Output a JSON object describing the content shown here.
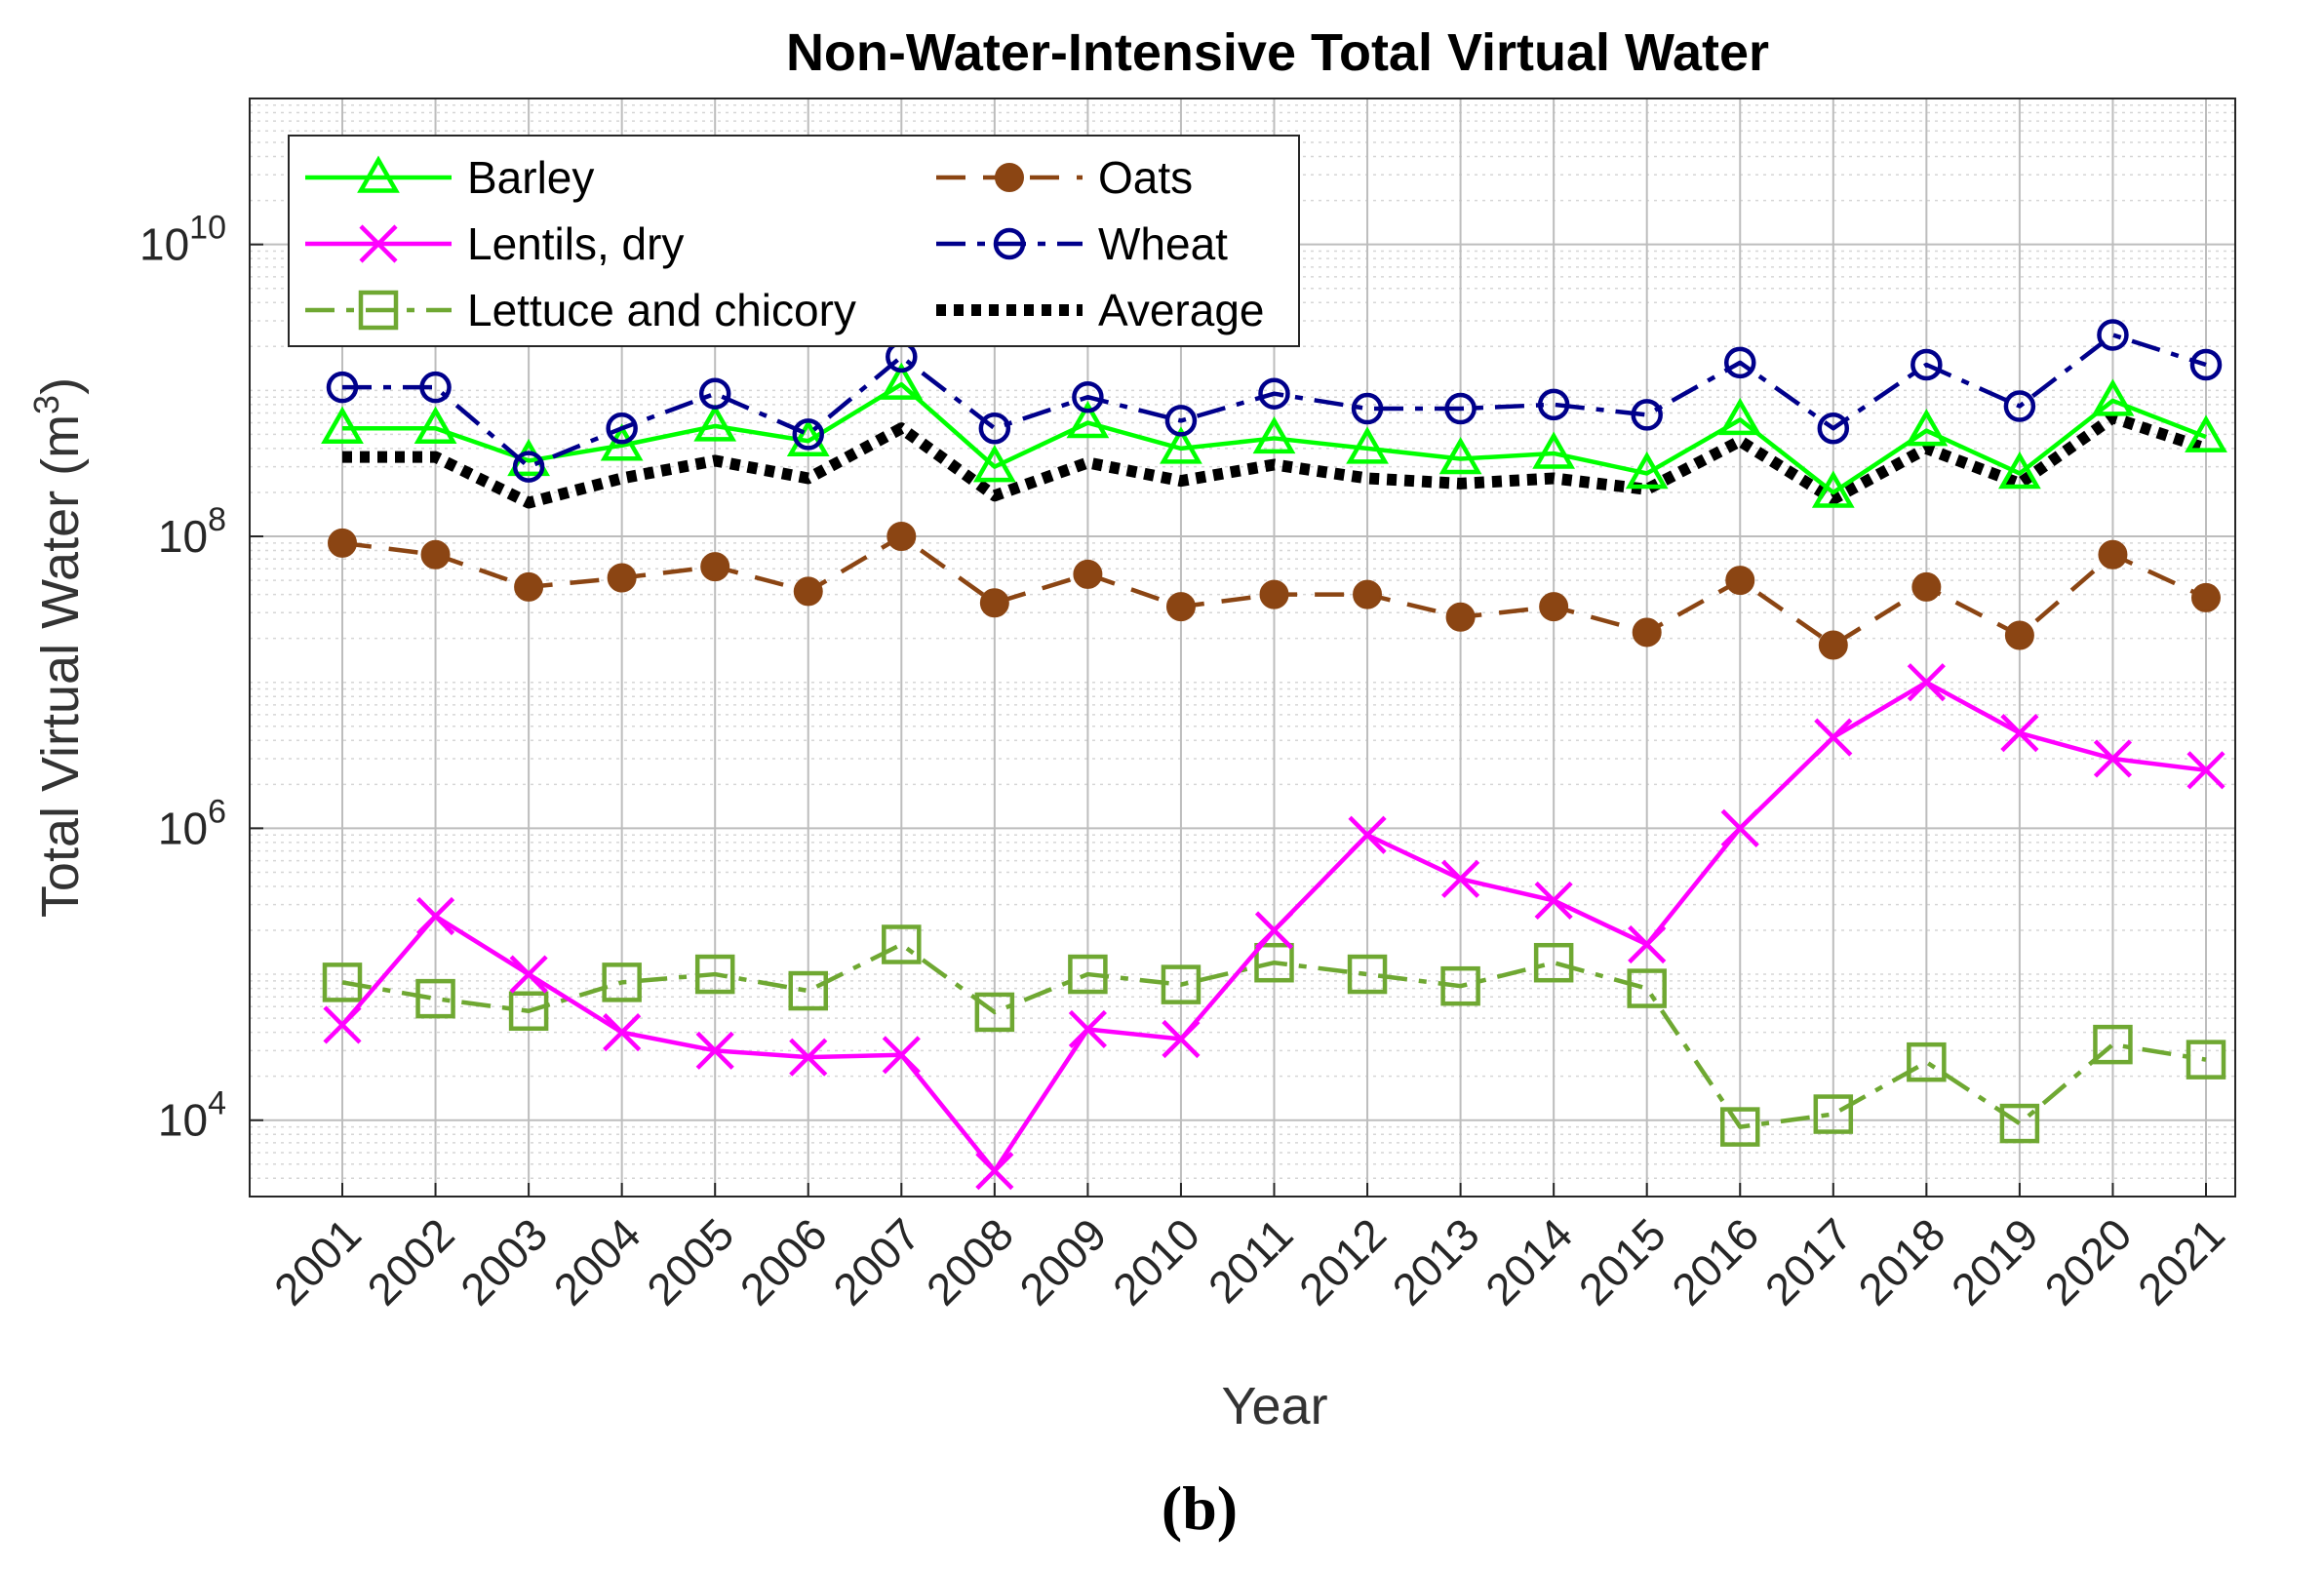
{
  "chart_data": {
    "type": "line",
    "title": "Non-Water-Intensive Total Virtual Water",
    "xlabel": "Year",
    "ylabel": "Total Virtual Water (m",
    "ylabel_superscript": "3",
    "ylabel_suffix": ")",
    "caption": "(b)",
    "yscale": "log",
    "ylim": [
      3000,
      100000000000
    ],
    "yticks": [
      {
        "value": 10000,
        "base": "10",
        "exp": "4"
      },
      {
        "value": 1000000,
        "base": "10",
        "exp": "6"
      },
      {
        "value": 100000000,
        "base": "10",
        "exp": "8"
      },
      {
        "value": 10000000000,
        "base": "10",
        "exp": "10"
      }
    ],
    "grid": true,
    "minor_grid": true,
    "legend_position": "top-left",
    "categories": [
      "2001",
      "2002",
      "2003",
      "2004",
      "2005",
      "2006",
      "2007",
      "2008",
      "2009",
      "2010",
      "2011",
      "2012",
      "2013",
      "2014",
      "2015",
      "2016",
      "2017",
      "2018",
      "2019",
      "2020",
      "2021"
    ],
    "series": [
      {
        "name": "Barley",
        "color": "#00ff00",
        "marker": "triangle",
        "dash": "solid",
        "values": [
          550000000,
          550000000,
          330000000,
          420000000,
          570000000,
          450000000,
          1100000000,
          300000000,
          600000000,
          400000000,
          470000000,
          400000000,
          340000000,
          370000000,
          270000000,
          630000000,
          200000000,
          530000000,
          270000000,
          850000000,
          480000000
        ]
      },
      {
        "name": "Lentils, dry",
        "color": "#ff00ff",
        "marker": "x",
        "dash": "solid",
        "values": [
          45000,
          250000,
          100000,
          40000,
          30000,
          27000,
          28000,
          4500,
          42000,
          36000,
          200000,
          900000,
          450000,
          320000,
          160000,
          1000000,
          4200000,
          10000000,
          4500000,
          3000000,
          2500000
        ]
      },
      {
        "name": "Lettuce and chicory",
        "color": "#6fa832",
        "marker": "square",
        "dash": "dashdot",
        "values": [
          88000,
          68000,
          56000,
          88000,
          100000,
          77000,
          160000,
          55000,
          100000,
          85000,
          120000,
          100000,
          83000,
          120000,
          80000,
          9000,
          11000,
          25000,
          9500,
          33000,
          26000
        ]
      },
      {
        "name": "Oats",
        "color": "#8b4513",
        "marker": "circle-filled",
        "dash": "dash",
        "values": [
          90000000,
          75000000,
          45000000,
          52000000,
          62000000,
          42000000,
          100000000,
          35000000,
          55000000,
          33000000,
          40000000,
          40000000,
          28000000,
          33000000,
          22000000,
          50000000,
          18000000,
          45000000,
          21000000,
          75000000,
          38000000
        ]
      },
      {
        "name": "Wheat",
        "color": "#00008b",
        "marker": "circle-open",
        "dash": "dashdot",
        "values": [
          1050000000,
          1050000000,
          300000000,
          550000000,
          950000000,
          500000000,
          1700000000,
          550000000,
          900000000,
          620000000,
          950000000,
          750000000,
          750000000,
          800000000,
          680000000,
          1550000000,
          550000000,
          1500000000,
          780000000,
          2400000000,
          1500000000
        ]
      },
      {
        "name": "Average",
        "color": "#000000",
        "marker": "none",
        "dash": "dotted-thick",
        "values": [
          350000000,
          350000000,
          170000000,
          250000000,
          330000000,
          250000000,
          550000000,
          190000000,
          320000000,
          240000000,
          310000000,
          250000000,
          230000000,
          250000000,
          210000000,
          450000000,
          180000000,
          400000000,
          230000000,
          650000000,
          400000000
        ]
      }
    ]
  }
}
